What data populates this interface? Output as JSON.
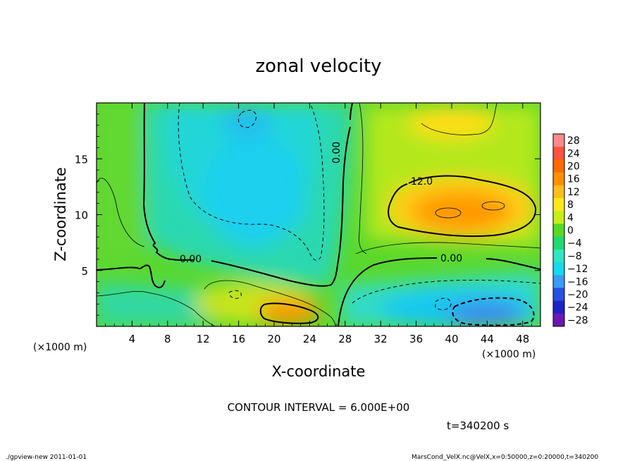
{
  "chart_data": {
    "type": "heatmap",
    "title": "zonal velocity",
    "xlabel": "X-coordinate",
    "ylabel": "Z-coordinate",
    "x_unit_label": "(×1000 m)",
    "y_unit_label": "(×1000 m)",
    "xlim": [
      0,
      50
    ],
    "ylim": [
      0,
      20
    ],
    "x_ticks": [
      4,
      8,
      12,
      16,
      20,
      24,
      28,
      32,
      36,
      40,
      44,
      48
    ],
    "y_ticks": [
      5,
      10,
      15
    ],
    "colorbar": {
      "levels": [
        28,
        24,
        20,
        16,
        12,
        8,
        4,
        0,
        -4,
        -8,
        -12,
        -16,
        -20,
        -24,
        -28
      ],
      "labels": [
        "28",
        "24",
        "20",
        "16",
        "12",
        "8",
        "4",
        "0",
        "−4",
        "−8",
        "−12",
        "−16",
        "−20",
        "−24",
        "−28"
      ],
      "colors": [
        "#ff8a8a",
        "#ff5540",
        "#ff6a00",
        "#ff9000",
        "#ffbd1a",
        "#ffe818",
        "#c8ec1a",
        "#58d828",
        "#22d870",
        "#30e6c0",
        "#18d8f0",
        "#3a9cf4",
        "#2850e0",
        "#1e22c8",
        "#6a18b0"
      ]
    },
    "contour_labels": [
      "0.00",
      "0.00",
      "0.00",
      "12.0"
    ],
    "contour_interval": "CONTOUR INTERVAL = 6.000E+00",
    "time_label": "t=340200 s",
    "features": [
      {
        "name": "upper-left westward region",
        "x": 18,
        "z": 12,
        "value": -10
      },
      {
        "name": "upper-right eastward jet",
        "x": 42,
        "z": 10.5,
        "value": 18
      },
      {
        "name": "lower-right westward jet",
        "x": 43,
        "z": 1.2,
        "value": -18
      },
      {
        "name": "lower eastward maximum",
        "x": 22,
        "z": 1.4,
        "value": 16
      }
    ]
  },
  "footer": {
    "left": "./gpview-new   2011-01-01",
    "right": "MarsCond_VelX.nc@VelX,x=0:50000,z=0:20000,t=340200"
  }
}
